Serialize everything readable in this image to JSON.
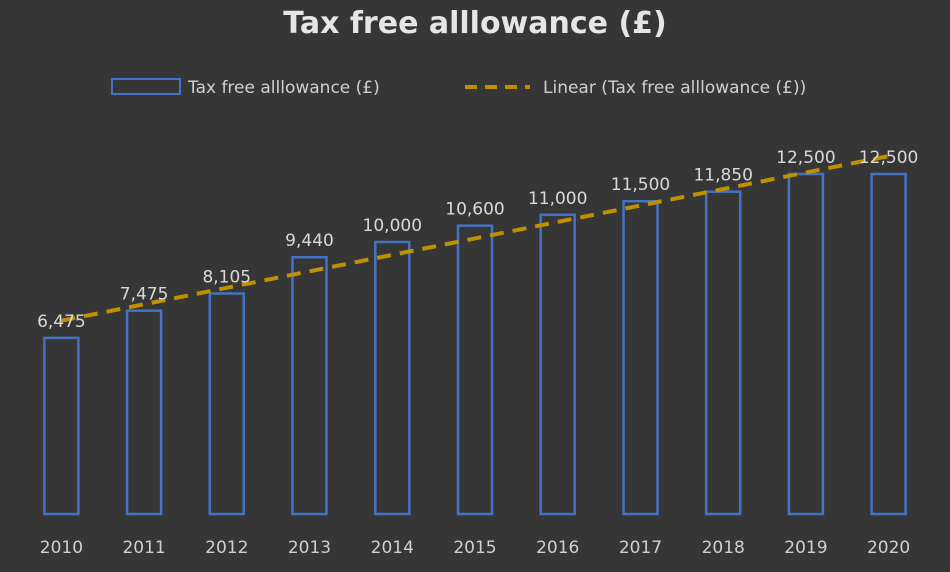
{
  "chart_data": {
    "type": "bar",
    "title": "Tax free alllowance (£)",
    "categories": [
      "2010",
      "2011",
      "2012",
      "2013",
      "2014",
      "2015",
      "2016",
      "2017",
      "2018",
      "2019",
      "2020"
    ],
    "series": [
      {
        "name": "Tax free alllowance (£)",
        "values": [
          6475,
          7475,
          8105,
          9440,
          10000,
          10600,
          11000,
          11500,
          11850,
          12500,
          12500
        ],
        "data_labels": [
          "6,475",
          "7,475",
          "8,105",
          "9,440",
          "10,000",
          "10,600",
          "11,000",
          "11,500",
          "11,850",
          "12,500",
          "12,500"
        ],
        "style": "outlined-bar",
        "color": "#4472c4"
      }
    ],
    "trendline": {
      "name": "Linear (Tax free alllowance (£))",
      "type": "linear",
      "style": "dashed",
      "color": "#bf9000"
    },
    "legend": {
      "position": "top",
      "entries": [
        "Tax free alllowance (£)",
        "Linear (Tax free alllowance (£))"
      ]
    },
    "ylim": [
      0,
      14000
    ],
    "grid": false,
    "xlabel": "",
    "ylabel": ""
  },
  "colors": {
    "background": "#363636",
    "bar_outline": "#4472c4",
    "trendline": "#bf9000",
    "text": "#d9d9d9"
  }
}
